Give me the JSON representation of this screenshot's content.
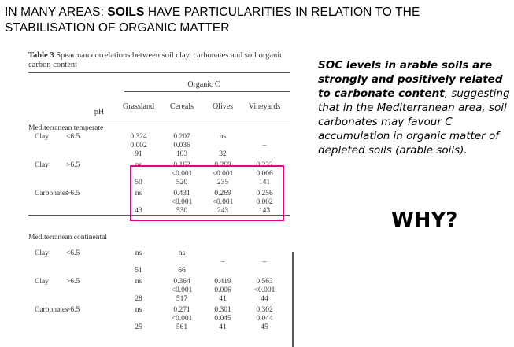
{
  "title": {
    "prefix": "IN MANY AREAS: ",
    "bold": "SOILS",
    "suffix": " HAVE PARTICULARITIES IN RELATION TO THE STABILISATION OF ORGANIC MATTER"
  },
  "table": {
    "caption_bold": "Table 3",
    "caption_text": " Spearman correlations between soil clay, carbonates and soil organic carbon content",
    "group_header": "Organic C",
    "col_ph": "pH",
    "columns": [
      "Grassland",
      "Cereals",
      "Olives",
      "Vineyards"
    ],
    "section1": "Mediterranean temperate",
    "section2": "Mediterranean continental",
    "rows": [
      {
        "label": "Clay",
        "ph": "<6.5",
        "g": "0.324",
        "c": "0.207",
        "o": "ns",
        "v": ""
      },
      {
        "label": "",
        "ph": "",
        "g": "0.002",
        "c": "0.036",
        "o": "",
        "v": "–"
      },
      {
        "label": "",
        "ph": "",
        "g": "91",
        "c": "103",
        "o": "32",
        "v": ""
      },
      {
        "label": "Clay",
        "ph": ">6.5",
        "g": "ns",
        "c": "0.162",
        "o": "0.269",
        "v": "0.232"
      },
      {
        "label": "",
        "ph": "",
        "g": "",
        "c": "<0.001",
        "o": "<0.001",
        "v": "0.006"
      },
      {
        "label": "",
        "ph": "",
        "g": "50",
        "c": "520",
        "o": "235",
        "v": "141"
      },
      {
        "label": "Carbonates",
        "ph": ">6.5",
        "g": "ns",
        "c": "0.431",
        "o": "0.269",
        "v": "0.256"
      },
      {
        "label": "",
        "ph": "",
        "g": "",
        "c": "<0.001",
        "o": "<0.001",
        "v": "0.002"
      },
      {
        "label": "",
        "ph": "",
        "g": "43",
        "c": "530",
        "o": "243",
        "v": "143"
      },
      {
        "label": "Clay",
        "ph": "<6.5",
        "g": "ns",
        "c": "ns",
        "o": "",
        "v": ""
      },
      {
        "label": "",
        "ph": "",
        "g": "",
        "c": "",
        "o": "–",
        "v": "–"
      },
      {
        "label": "",
        "ph": "",
        "g": "51",
        "c": "66",
        "o": "",
        "v": ""
      },
      {
        "label": "Clay",
        "ph": ">6.5",
        "g": "ns",
        "c": "0.364",
        "o": "0.419",
        "v": "0.563"
      },
      {
        "label": "",
        "ph": "",
        "g": "",
        "c": "<0.001",
        "o": "0.006",
        "v": "<0.001"
      },
      {
        "label": "",
        "ph": "",
        "g": "28",
        "c": "517",
        "o": "41",
        "v": "44"
      },
      {
        "label": "Carbonates",
        "ph": ">6.5",
        "g": "ns",
        "c": "0.271",
        "o": "0.301",
        "v": "0.302"
      },
      {
        "label": "",
        "ph": "",
        "g": "",
        "c": "<0.001",
        "o": "0.045",
        "v": "0.044"
      },
      {
        "label": "",
        "ph": "",
        "g": "25",
        "c": "561",
        "o": "41",
        "v": "45"
      }
    ]
  },
  "side_text": {
    "bold": "SOC levels in arable soils are strongly and positively related to carbonate content",
    "rest": ", suggesting that in the Mediterranean area, soil carbonates may favour C accumulation in organic matter of depleted soils (arable soils)."
  },
  "why": "WHY?",
  "highlight_color": "#e5007e"
}
